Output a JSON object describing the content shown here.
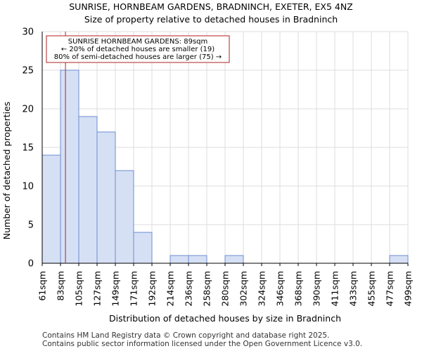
{
  "title_line1": "SUNRISE, HORNBEAM GARDENS, BRADNINCH, EXETER, EX5 4NZ",
  "title_line2": "Size of property relative to detached houses in Bradninch",
  "footer_line1": "Contains HM Land Registry data © Crown copyright and database right 2025.",
  "footer_line2": "Contains public sector information licensed under the Open Government Licence v3.0.",
  "colors": {
    "bar_fill": "#d6e0f5",
    "bar_stroke": "#6b8cd0",
    "marker": "#b22222",
    "grid": "#dcdcdc"
  },
  "chart_data": {
    "type": "bar",
    "title": "Size of property relative to detached houses in Bradninch",
    "xlabel": "Distribution of detached houses by size in Bradninch",
    "ylabel": "Number of detached properties",
    "ylim": [
      0,
      30
    ],
    "yticks": [
      0,
      5,
      10,
      15,
      20,
      25,
      30
    ],
    "bin_edges": [
      "61sqm",
      "83sqm",
      "105sqm",
      "127sqm",
      "149sqm",
      "171sqm",
      "192sqm",
      "214sqm",
      "236sqm",
      "258sqm",
      "280sqm",
      "302sqm",
      "324sqm",
      "346sqm",
      "368sqm",
      "390sqm",
      "411sqm",
      "433sqm",
      "455sqm",
      "477sqm",
      "499sqm"
    ],
    "values": [
      14,
      25,
      19,
      17,
      12,
      4,
      0,
      1,
      1,
      0,
      1,
      0,
      0,
      0,
      0,
      0,
      0,
      0,
      0,
      1
    ],
    "marker": {
      "value_sqm": 89,
      "bin_index": 1,
      "bin_low_sqm": 83,
      "bin_high_sqm": 105
    },
    "annotation": {
      "line1": "SUNRISE HORNBEAM GARDENS: 89sqm",
      "line2": "← 20% of detached houses are smaller (19)",
      "line3": "80% of semi-detached houses are larger (75) →"
    }
  }
}
